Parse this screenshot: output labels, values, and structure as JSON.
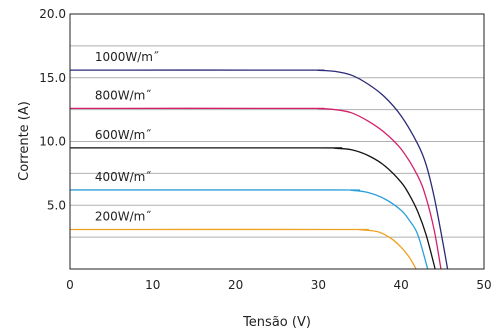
{
  "chart_data": {
    "type": "line",
    "xlabel": "Tensão (V)",
    "ylabel": "Corrente (A)",
    "xlim": [
      0,
      50
    ],
    "ylim": [
      0,
      20
    ],
    "x_ticks": [
      "0",
      "10",
      "20",
      "30",
      "40",
      "50"
    ],
    "y_ticks": [
      {
        "value": 5,
        "label": "5.0"
      },
      {
        "value": 10,
        "label": "10.0"
      },
      {
        "value": 15,
        "label": "15.0"
      },
      {
        "value": 20,
        "label": "20.0"
      }
    ],
    "grid_y": [
      2.5,
      5,
      7.5,
      10,
      12.5,
      15,
      17.5
    ],
    "grid": "horizontal",
    "series": [
      {
        "name": "1000W/m˝",
        "color": "#2b2a78",
        "points": [
          [
            0,
            15.6
          ],
          [
            28,
            15.6
          ],
          [
            30,
            15.58
          ],
          [
            32,
            15.5
          ],
          [
            34,
            15.2
          ],
          [
            36,
            14.5
          ],
          [
            38,
            13.5
          ],
          [
            40,
            12.0
          ],
          [
            42,
            9.8
          ],
          [
            43,
            8.2
          ],
          [
            44,
            5.6
          ],
          [
            45,
            2.2
          ],
          [
            45.6,
            0
          ]
        ]
      },
      {
        "name": "800W/m˝",
        "color": "#d4206a",
        "points": [
          [
            0,
            12.6
          ],
          [
            28,
            12.6
          ],
          [
            30,
            12.58
          ],
          [
            32,
            12.5
          ],
          [
            34,
            12.25
          ],
          [
            36,
            11.6
          ],
          [
            38,
            10.7
          ],
          [
            40,
            9.4
          ],
          [
            42,
            7.3
          ],
          [
            43,
            5.6
          ],
          [
            44,
            3.0
          ],
          [
            44.8,
            0
          ]
        ]
      },
      {
        "name": "600W/m˝",
        "color": "#111111",
        "points": [
          [
            0,
            9.5
          ],
          [
            30,
            9.5
          ],
          [
            32,
            9.47
          ],
          [
            34,
            9.35
          ],
          [
            36,
            8.9
          ],
          [
            38,
            8.1
          ],
          [
            40,
            6.8
          ],
          [
            41,
            5.8
          ],
          [
            42,
            4.5
          ],
          [
            43,
            2.7
          ],
          [
            44.1,
            0
          ]
        ]
      },
      {
        "name": "400W/m˝",
        "color": "#2a9fd8",
        "points": [
          [
            0,
            6.2
          ],
          [
            32,
            6.2
          ],
          [
            34,
            6.17
          ],
          [
            36,
            6.0
          ],
          [
            38,
            5.5
          ],
          [
            40,
            4.6
          ],
          [
            41,
            3.8
          ],
          [
            42,
            2.7
          ],
          [
            43.2,
            0
          ]
        ]
      },
      {
        "name": "200W/m˝",
        "color": "#f0a020",
        "points": [
          [
            0,
            3.1
          ],
          [
            33,
            3.1
          ],
          [
            35,
            3.08
          ],
          [
            37,
            2.95
          ],
          [
            38,
            2.7
          ],
          [
            39,
            2.3
          ],
          [
            40,
            1.7
          ],
          [
            41,
            0.9
          ],
          [
            41.8,
            0
          ]
        ]
      }
    ]
  }
}
